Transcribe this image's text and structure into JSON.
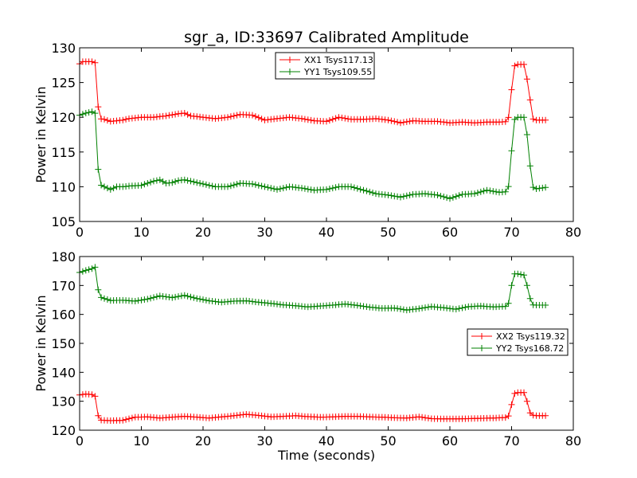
{
  "title": "sgr_a, ID:33697 Calibrated Amplitude",
  "colors": {
    "red": "#ff0000",
    "green": "#008000"
  },
  "chart_data": [
    {
      "type": "line",
      "xlabel": "",
      "ylabel": "Power in Kelvin",
      "xlim": [
        0,
        80
      ],
      "ylim": [
        105,
        130
      ],
      "xticks": [
        0,
        10,
        20,
        30,
        40,
        50,
        60,
        70,
        80
      ],
      "yticks": [
        105,
        110,
        115,
        120,
        125,
        130
      ],
      "legend_position": "top-center",
      "series": [
        {
          "name": "XX1 Tsys117.13",
          "color": "#ff0000",
          "anchors": [
            [
              0,
              127.7
            ],
            [
              0.5,
              128.0
            ],
            [
              1,
              128.0
            ],
            [
              2,
              128.0
            ],
            [
              2.7,
              127.8
            ],
            [
              3.0,
              121.5
            ],
            [
              3.3,
              119.8
            ],
            [
              4,
              119.7
            ],
            [
              5,
              119.4
            ],
            [
              6,
              119.5
            ],
            [
              7,
              119.6
            ],
            [
              8,
              119.8
            ],
            [
              9,
              119.9
            ],
            [
              10,
              120.0
            ],
            [
              12,
              120.0
            ],
            [
              14,
              120.2
            ],
            [
              16,
              120.5
            ],
            [
              17,
              120.6
            ],
            [
              18,
              120.2
            ],
            [
              20,
              120.0
            ],
            [
              22,
              119.8
            ],
            [
              24,
              120.0
            ],
            [
              26,
              120.4
            ],
            [
              28,
              120.3
            ],
            [
              30,
              119.6
            ],
            [
              32,
              119.8
            ],
            [
              34,
              120.0
            ],
            [
              36,
              119.8
            ],
            [
              38,
              119.5
            ],
            [
              40,
              119.4
            ],
            [
              42,
              120.0
            ],
            [
              44,
              119.7
            ],
            [
              46,
              119.7
            ],
            [
              48,
              119.8
            ],
            [
              50,
              119.6
            ],
            [
              52,
              119.2
            ],
            [
              54,
              119.5
            ],
            [
              56,
              119.4
            ],
            [
              58,
              119.4
            ],
            [
              60,
              119.2
            ],
            [
              62,
              119.3
            ],
            [
              64,
              119.2
            ],
            [
              66,
              119.3
            ],
            [
              68,
              119.3
            ],
            [
              69.4,
              119.4
            ],
            [
              69.9,
              122.3
            ],
            [
              70.2,
              127.3
            ],
            [
              71,
              127.6
            ],
            [
              72,
              127.6
            ],
            [
              72.5,
              125.5
            ],
            [
              73,
              122.5
            ],
            [
              73.3,
              119.8
            ],
            [
              74,
              119.6
            ],
            [
              75.5,
              119.6
            ]
          ]
        },
        {
          "name": "YY1 Tsys109.55",
          "color": "#008000",
          "anchors": [
            [
              0,
              120.3
            ],
            [
              1,
              120.6
            ],
            [
              2,
              120.8
            ],
            [
              2.7,
              120.5
            ],
            [
              3.0,
              112.5
            ],
            [
              3.3,
              110.3
            ],
            [
              4,
              110.0
            ],
            [
              5,
              109.6
            ],
            [
              6,
              110.0
            ],
            [
              7,
              110.0
            ],
            [
              8,
              110.1
            ],
            [
              10,
              110.2
            ],
            [
              11,
              110.5
            ],
            [
              12,
              110.8
            ],
            [
              13,
              111.0
            ],
            [
              14,
              110.5
            ],
            [
              15,
              110.6
            ],
            [
              16,
              110.9
            ],
            [
              17,
              111.0
            ],
            [
              18,
              110.8
            ],
            [
              20,
              110.4
            ],
            [
              22,
              110.0
            ],
            [
              24,
              110.0
            ],
            [
              26,
              110.5
            ],
            [
              28,
              110.4
            ],
            [
              30,
              110.0
            ],
            [
              32,
              109.6
            ],
            [
              34,
              110.0
            ],
            [
              36,
              109.8
            ],
            [
              38,
              109.5
            ],
            [
              40,
              109.6
            ],
            [
              42,
              110.0
            ],
            [
              44,
              110.0
            ],
            [
              46,
              109.5
            ],
            [
              48,
              109.0
            ],
            [
              50,
              108.8
            ],
            [
              52,
              108.5
            ],
            [
              54,
              108.9
            ],
            [
              56,
              109.0
            ],
            [
              58,
              108.8
            ],
            [
              60,
              108.3
            ],
            [
              62,
              108.9
            ],
            [
              64,
              109.0
            ],
            [
              66,
              109.5
            ],
            [
              68,
              109.2
            ],
            [
              69.4,
              109.3
            ],
            [
              69.9,
              113.0
            ],
            [
              70.2,
              119.5
            ],
            [
              71,
              120.0
            ],
            [
              72,
              120.0
            ],
            [
              72.5,
              117.5
            ],
            [
              73,
              113.0
            ],
            [
              73.3,
              110.0
            ],
            [
              74,
              109.7
            ],
            [
              75.5,
              109.9
            ]
          ]
        }
      ]
    },
    {
      "type": "line",
      "xlabel": "Time (seconds)",
      "ylabel": "Power in Kelvin",
      "xlim": [
        0,
        80
      ],
      "ylim": [
        120,
        180
      ],
      "xticks": [
        0,
        10,
        20,
        30,
        40,
        50,
        60,
        70,
        80
      ],
      "yticks": [
        120,
        130,
        140,
        150,
        160,
        170,
        180
      ],
      "legend_position": "center-right",
      "series": [
        {
          "name": "XX2 Tsys119.32",
          "color": "#ff0000",
          "anchors": [
            [
              0,
              132.2
            ],
            [
              1,
              132.5
            ],
            [
              2,
              132.3
            ],
            [
              2.7,
              131.5
            ],
            [
              3.0,
              125.0
            ],
            [
              3.3,
              123.5
            ],
            [
              5,
              123.3
            ],
            [
              7,
              123.4
            ],
            [
              9,
              124.5
            ],
            [
              11,
              124.6
            ],
            [
              13,
              124.2
            ],
            [
              15,
              124.5
            ],
            [
              17,
              124.8
            ],
            [
              19,
              124.5
            ],
            [
              21,
              124.2
            ],
            [
              23,
              124.6
            ],
            [
              25,
              125.0
            ],
            [
              27,
              125.5
            ],
            [
              29,
              125.1
            ],
            [
              31,
              124.6
            ],
            [
              33,
              124.8
            ],
            [
              35,
              125.0
            ],
            [
              37,
              124.7
            ],
            [
              39,
              124.5
            ],
            [
              41,
              124.6
            ],
            [
              43,
              124.8
            ],
            [
              45,
              124.8
            ],
            [
              47,
              124.6
            ],
            [
              49,
              124.5
            ],
            [
              51,
              124.3
            ],
            [
              53,
              124.2
            ],
            [
              55,
              124.6
            ],
            [
              57,
              124.0
            ],
            [
              59,
              123.9
            ],
            [
              61,
              123.9
            ],
            [
              63,
              124.0
            ],
            [
              65,
              124.1
            ],
            [
              67,
              124.2
            ],
            [
              69.4,
              124.4
            ],
            [
              69.9,
              127.0
            ],
            [
              70.2,
              132.5
            ],
            [
              71,
              133.0
            ],
            [
              72,
              133.0
            ],
            [
              72.5,
              130.0
            ],
            [
              73,
              126.0
            ],
            [
              73.3,
              125.2
            ],
            [
              74,
              125.0
            ],
            [
              75.5,
              125.0
            ]
          ]
        },
        {
          "name": "YY2 Tsys168.72",
          "color": "#008000",
          "anchors": [
            [
              0,
              174.5
            ],
            [
              1,
              175.2
            ],
            [
              2,
              175.8
            ],
            [
              2.7,
              176.5
            ],
            [
              3.0,
              168.5
            ],
            [
              3.3,
              166.0
            ],
            [
              5,
              164.8
            ],
            [
              7,
              164.9
            ],
            [
              9,
              164.6
            ],
            [
              11,
              165.3
            ],
            [
              13,
              166.4
            ],
            [
              15,
              165.8
            ],
            [
              17,
              166.6
            ],
            [
              19,
              165.5
            ],
            [
              21,
              164.7
            ],
            [
              23,
              164.2
            ],
            [
              25,
              164.6
            ],
            [
              27,
              164.7
            ],
            [
              29,
              164.2
            ],
            [
              31,
              163.8
            ],
            [
              33,
              163.3
            ],
            [
              35,
              163.0
            ],
            [
              37,
              162.6
            ],
            [
              39,
              162.9
            ],
            [
              41,
              163.2
            ],
            [
              43,
              163.6
            ],
            [
              45,
              163.1
            ],
            [
              47,
              162.5
            ],
            [
              49,
              162.1
            ],
            [
              51,
              162.2
            ],
            [
              53,
              161.5
            ],
            [
              55,
              162.0
            ],
            [
              57,
              162.7
            ],
            [
              59,
              162.3
            ],
            [
              61,
              161.8
            ],
            [
              63,
              162.7
            ],
            [
              65,
              162.9
            ],
            [
              67,
              162.6
            ],
            [
              69.4,
              162.8
            ],
            [
              69.9,
              168.0
            ],
            [
              70.2,
              174.0
            ],
            [
              71,
              174.0
            ],
            [
              72,
              173.6
            ],
            [
              72.5,
              170.0
            ],
            [
              73,
              165.5
            ],
            [
              73.3,
              163.3
            ],
            [
              74,
              163.2
            ],
            [
              75.5,
              163.2
            ]
          ]
        }
      ]
    }
  ]
}
